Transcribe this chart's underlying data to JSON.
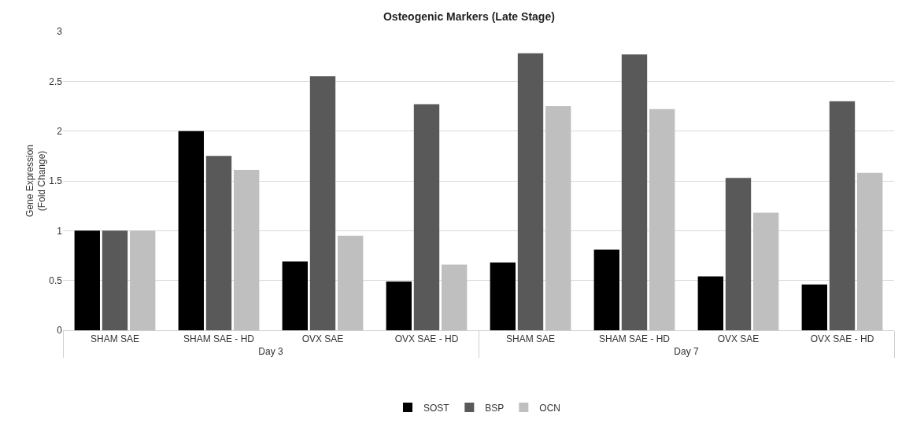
{
  "chart_data": {
    "type": "bar",
    "title": "Osteogenic Markers (Late Stage)",
    "ylabel": "Gene Expression\n(Fold Change)",
    "categories": [
      "SHAM SAE",
      "SHAM SAE - HD",
      "OVX SAE",
      "OVX SAE - HD",
      "SHAM SAE",
      "SHAM SAE - HD",
      "OVX SAE",
      "OVX SAE - HD"
    ],
    "annotations": [
      "Day 3",
      "Day 7"
    ],
    "series": [
      {
        "name": "SOST",
        "color": "#000000",
        "values": [
          1,
          2,
          0.69,
          0.49,
          0.68,
          0.81,
          0.54,
          0.46
        ]
      },
      {
        "name": "BSP",
        "color": "#595959",
        "values": [
          1,
          1.75,
          2.55,
          2.27,
          2.78,
          2.77,
          1.53,
          2.3
        ]
      },
      {
        "name": "OCN",
        "color": "#bfbfbf",
        "values": [
          1,
          1.61,
          0.95,
          0.66,
          2.25,
          2.22,
          1.18,
          1.58
        ]
      }
    ],
    "ylim": [
      0,
      3
    ],
    "yticks": [
      0,
      0.5,
      1,
      1.5,
      2,
      2.5,
      3
    ],
    "grid": "y",
    "legend": "bottom"
  }
}
